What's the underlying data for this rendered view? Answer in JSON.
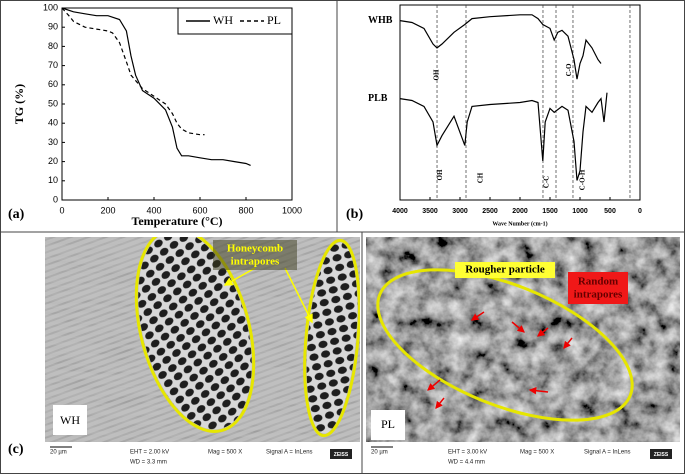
{
  "chart_data": [
    {
      "type": "line",
      "panel_label": "(a)",
      "xlabel": "Temperature (°C)",
      "ylabel": "TG (%)",
      "xlim": [
        0,
        1000
      ],
      "xticks": [
        0,
        200,
        400,
        600,
        800,
        1000
      ],
      "ylim": [
        0,
        100
      ],
      "yticks": [
        0,
        10,
        20,
        30,
        40,
        50,
        60,
        70,
        80,
        90,
        100
      ],
      "legend": "upper right",
      "grid": false,
      "series": [
        {
          "name": "WH",
          "color": "#000000",
          "line_style": "solid",
          "x": [
            0,
            50,
            100,
            150,
            200,
            250,
            280,
            300,
            320,
            350,
            400,
            450,
            480,
            500,
            520,
            550,
            600,
            650,
            700,
            750,
            800,
            820
          ],
          "values": [
            100,
            98,
            97,
            96,
            96,
            94,
            88,
            75,
            65,
            57,
            53,
            47,
            38,
            27,
            23,
            23,
            22,
            21,
            21,
            20,
            19,
            18
          ]
        },
        {
          "name": "PL",
          "color": "#000000",
          "line_style": "dashed",
          "x": [
            0,
            30,
            50,
            100,
            150,
            200,
            220,
            250,
            280,
            300,
            350,
            400,
            450,
            480,
            500,
            520,
            550,
            600,
            620
          ],
          "values": [
            100,
            96,
            93,
            90,
            89,
            88,
            87,
            82,
            72,
            65,
            58,
            54,
            50,
            45,
            40,
            37,
            35,
            34,
            34
          ]
        }
      ]
    },
    {
      "type": "line",
      "panel_label": "(b)",
      "xlabel": "Wave Number (cm-1)",
      "xlim": [
        4000,
        0
      ],
      "xticks": [
        4000,
        3500,
        3000,
        2500,
        2000,
        1500,
        1000,
        500,
        0
      ],
      "ylim": [
        0,
        100
      ],
      "series_labels": true,
      "grid": false,
      "marker_lines": [
        3383,
        2900,
        1617,
        1400,
        1117,
        167
      ],
      "annotations": [
        {
          "text": "OH",
          "x": 3383
        },
        {
          "text": "C-O",
          "x": 1180
        },
        {
          "text": "OH",
          "x": 3330
        },
        {
          "text": "CH",
          "x": 2650
        },
        {
          "text": "C-C",
          "x": 1550
        },
        {
          "text": "C-O-H",
          "x": 950
        }
      ],
      "series": [
        {
          "name": "WHB",
          "color": "#000000",
          "line_style": "solid",
          "x": [
            4000,
            3800,
            3600,
            3450,
            3383,
            3300,
            3100,
            2920,
            2800,
            2500,
            2000,
            1800,
            1700,
            1620,
            1500,
            1430,
            1370,
            1300,
            1200,
            1150,
            1100,
            1050,
            1000,
            950,
            900,
            800,
            700,
            650
          ],
          "values": [
            92,
            91,
            88,
            80,
            78,
            80,
            86,
            90,
            93,
            94,
            95,
            95,
            93,
            90,
            88,
            82,
            86,
            87,
            84,
            78,
            72,
            62,
            70,
            74,
            82,
            78,
            72,
            70
          ]
        },
        {
          "name": "PLB",
          "color": "#000000",
          "line_style": "solid",
          "x": [
            4000,
            3800,
            3600,
            3450,
            3383,
            3300,
            3100,
            2920,
            2880,
            2800,
            2500,
            2000,
            1800,
            1700,
            1620,
            1580,
            1500,
            1430,
            1300,
            1200,
            1100,
            1050,
            1000,
            950,
            900,
            800,
            700,
            650,
            600,
            550
          ],
          "values": [
            52,
            51,
            48,
            40,
            28,
            33,
            43,
            28,
            40,
            48,
            49,
            50,
            51,
            50,
            20,
            40,
            47,
            45,
            48,
            46,
            30,
            10,
            15,
            35,
            48,
            45,
            50,
            52,
            40,
            55
          ]
        }
      ]
    }
  ],
  "sem_panel": {
    "label": "(c)",
    "left": {
      "sample": "WH",
      "annotation": [
        "Honeycomb",
        "intrapores"
      ],
      "scale_bar": "20 µm",
      "eht": "EHT =  2.00 kV",
      "mag": "Mag =   500 X",
      "signal": "Signal A = InLens",
      "wd": "WD =  3.3 mm",
      "logo": "ZEISS"
    },
    "right": {
      "sample": "PL",
      "annotation": [
        "Rougher particle"
      ],
      "annotation2": [
        "Random",
        "intrapores"
      ],
      "scale_bar": "20 µm",
      "eht": "EHT =  3.00 kV",
      "mag": "Mag =   500 X",
      "signal": "Signal A = InLens",
      "wd": "WD =  4.4 mm",
      "logo": "ZEISS"
    }
  }
}
